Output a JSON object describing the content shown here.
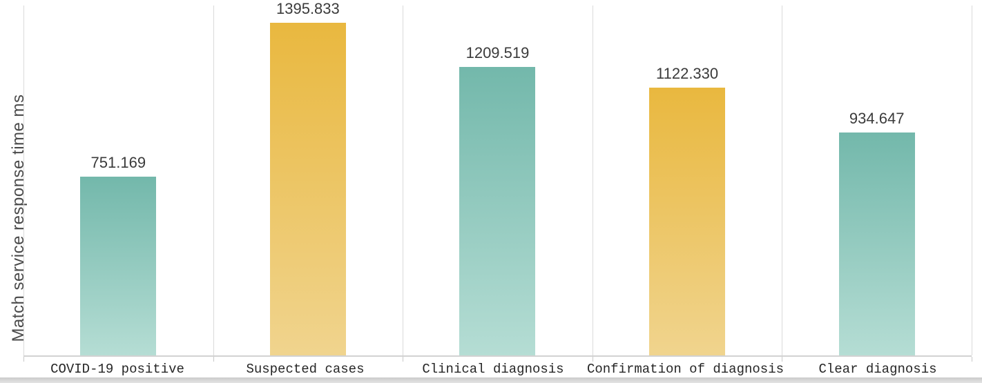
{
  "chart_data": {
    "type": "bar",
    "title": "",
    "xlabel": "",
    "ylabel": "Match service response time ms",
    "categories": [
      "COVID-19 positive",
      "Suspected cases",
      "Clinical diagnosis",
      "Confirmation of diagnosis",
      "Clear diagnosis"
    ],
    "values": [
      751.169,
      1395.833,
      1209.519,
      1122.33,
      934.647
    ],
    "value_labels": [
      "751.169",
      "1395.833",
      "1209.519",
      "1122.330",
      "934.647"
    ],
    "bar_color_keys": [
      "teal",
      "gold",
      "teal",
      "gold",
      "teal"
    ],
    "palette": {
      "teal_top": "#73b8ab",
      "teal_bottom": "#b5ddd4",
      "gold_top": "#e9b83f",
      "gold_bottom": "#f0d48e"
    },
    "ylim": [
      0,
      1491
    ],
    "yticks": "none",
    "grid": "vertical category separators",
    "legend_position": "none",
    "axis_color": "#d2d2d2",
    "gridline_color": "#dadada",
    "value_label_color": "#3a3a3a",
    "category_label_color": "#262626"
  }
}
